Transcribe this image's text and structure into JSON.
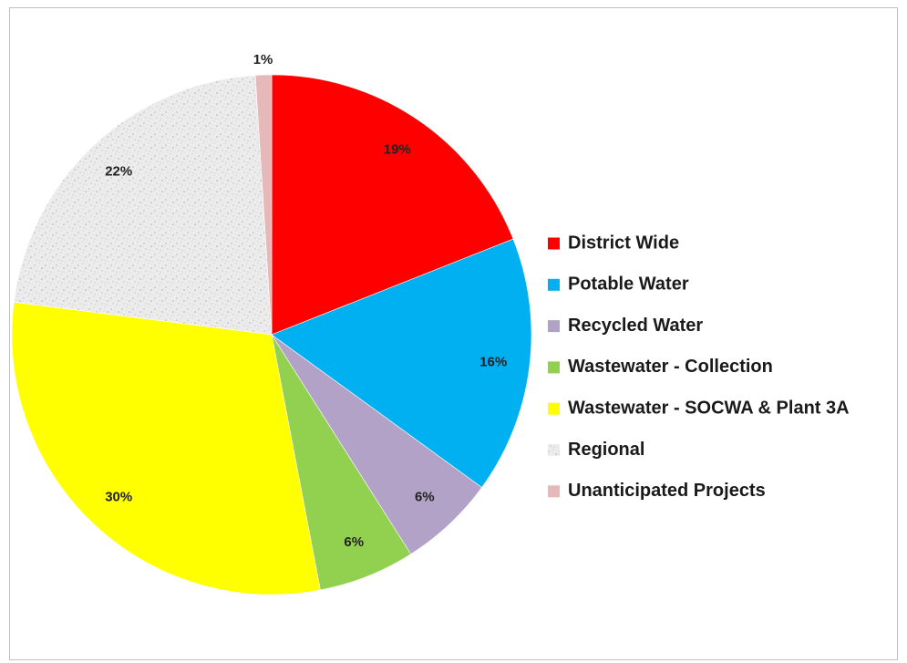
{
  "chart_data": {
    "type": "pie",
    "title": "",
    "legend_position": "right",
    "slices": [
      {
        "name": "District Wide",
        "value": 19,
        "label": "19%",
        "color": "#ff0000",
        "pattern": "solid"
      },
      {
        "name": "Potable Water",
        "value": 16,
        "label": "16%",
        "color": "#00b0f0",
        "pattern": "solid"
      },
      {
        "name": "Recycled Water",
        "value": 6,
        "label": "6%",
        "color": "#b3a2c7",
        "pattern": "solid"
      },
      {
        "name": "Wastewater - Collection",
        "value": 6,
        "label": "6%",
        "color": "#92d050",
        "pattern": "solid"
      },
      {
        "name": "Wastewater - SOCWA & Plant 3A",
        "value": 30,
        "label": "30%",
        "color": "#ffff00",
        "pattern": "solid"
      },
      {
        "name": "Regional",
        "value": 22,
        "label": "22%",
        "color": "#ececec",
        "pattern": "speckled"
      },
      {
        "name": "Unanticipated Projects",
        "value": 1,
        "label": "1%",
        "color": "#e6b8b7",
        "pattern": "solid"
      }
    ]
  }
}
